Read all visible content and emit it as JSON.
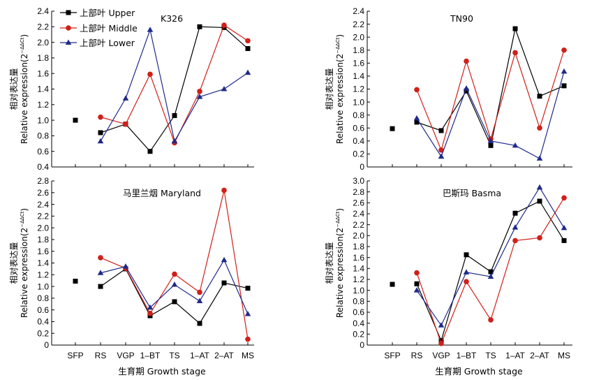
{
  "legend": {
    "upper": "上部叶 Upper",
    "middle": "上部叶 Middle",
    "lower": "上部叶 Lower"
  },
  "ylabel_cn": "相对表达量",
  "ylabel_en": "Relative expression(2",
  "ylabel_sup": "−ΔΔCt",
  "ylabel_close": ")",
  "xlabel": "生育期 Growth stage",
  "categories": [
    "SFP",
    "RS",
    "VGP",
    "1–BT",
    "TS",
    "1–AT",
    "2–AT",
    "MS"
  ],
  "colors": {
    "upper": "#000000",
    "middle": "#d0201a",
    "lower": "#1f2a8a"
  },
  "chart_data": [
    {
      "type": "line",
      "title": "K326",
      "categories": [
        "SFP",
        "RS",
        "VGP",
        "1–BT",
        "TS",
        "1–AT",
        "2–AT",
        "MS"
      ],
      "ylim": [
        0.4,
        2.4
      ],
      "yticks": [
        0.4,
        0.6,
        0.8,
        1.0,
        1.2,
        1.4,
        1.6,
        1.8,
        2.0,
        2.2,
        2.4
      ],
      "series": [
        {
          "name": "上部叶 Upper",
          "values": [
            1.0,
            0.84,
            0.95,
            0.6,
            1.06,
            2.2,
            2.19,
            1.92
          ]
        },
        {
          "name": "上部叶 Middle",
          "values": [
            null,
            1.04,
            0.95,
            1.59,
            0.71,
            1.37,
            2.22,
            2.02
          ]
        },
        {
          "name": "上部叶 Lower",
          "values": [
            null,
            0.73,
            1.28,
            2.16,
            0.73,
            1.3,
            1.4,
            1.61
          ]
        }
      ]
    },
    {
      "type": "line",
      "title": "TN90",
      "categories": [
        "SFP",
        "RS",
        "VGP",
        "1–BT",
        "TS",
        "1–AT",
        "2–AT",
        "MS"
      ],
      "ylim": [
        0,
        2.4
      ],
      "yticks": [
        0,
        0.2,
        0.4,
        0.6,
        0.8,
        1.0,
        1.2,
        1.4,
        1.6,
        1.8,
        2.0,
        2.2,
        2.4
      ],
      "series": [
        {
          "name": "上部叶 Upper",
          "values": [
            0.59,
            0.69,
            0.56,
            1.17,
            0.33,
            2.13,
            1.09,
            1.25
          ]
        },
        {
          "name": "上部叶 Middle",
          "values": [
            null,
            1.19,
            0.26,
            1.63,
            0.43,
            1.76,
            0.6,
            1.8
          ]
        },
        {
          "name": "上部叶 Lower",
          "values": [
            null,
            0.75,
            0.16,
            1.21,
            0.4,
            0.33,
            0.13,
            1.47
          ]
        }
      ]
    },
    {
      "type": "line",
      "title": "马里兰烟 Maryland",
      "categories": [
        "SFP",
        "RS",
        "VGP",
        "1–BT",
        "TS",
        "1–AT",
        "2–AT",
        "MS"
      ],
      "ylim": [
        0,
        2.8
      ],
      "yticks": [
        0,
        0.2,
        0.4,
        0.6,
        0.8,
        1.0,
        1.2,
        1.4,
        1.6,
        1.8,
        2.0,
        2.2,
        2.4,
        2.6,
        2.8
      ],
      "series": [
        {
          "name": "上部叶 Upper",
          "values": [
            1.09,
            1.0,
            1.3,
            0.5,
            0.74,
            0.37,
            1.06,
            0.97
          ]
        },
        {
          "name": "上部叶 Middle",
          "values": [
            null,
            1.49,
            1.31,
            0.54,
            1.21,
            0.9,
            2.64,
            0.1
          ]
        },
        {
          "name": "上部叶 Lower",
          "values": [
            null,
            1.23,
            1.34,
            0.64,
            1.03,
            0.75,
            1.45,
            0.53
          ]
        }
      ]
    },
    {
      "type": "line",
      "title": "巴斯玛 Basma",
      "categories": [
        "SFP",
        "RS",
        "VGP",
        "1–BT",
        "TS",
        "1–AT",
        "2–AT",
        "MS"
      ],
      "ylim": [
        0,
        3.0
      ],
      "yticks": [
        0,
        0.2,
        0.4,
        0.6,
        0.8,
        1.0,
        1.2,
        1.4,
        1.6,
        1.8,
        2.0,
        2.2,
        2.4,
        2.6,
        2.8,
        3.0
      ],
      "series": [
        {
          "name": "上部叶 Upper",
          "values": [
            1.11,
            1.12,
            0.08,
            1.65,
            1.34,
            2.41,
            2.63,
            1.91
          ]
        },
        {
          "name": "上部叶 Middle",
          "values": [
            null,
            1.32,
            0.03,
            1.16,
            0.46,
            1.91,
            1.96,
            2.69
          ]
        },
        {
          "name": "上部叶 Lower",
          "values": [
            null,
            1.0,
            0.36,
            1.33,
            1.25,
            2.15,
            2.88,
            2.14
          ]
        }
      ]
    }
  ]
}
